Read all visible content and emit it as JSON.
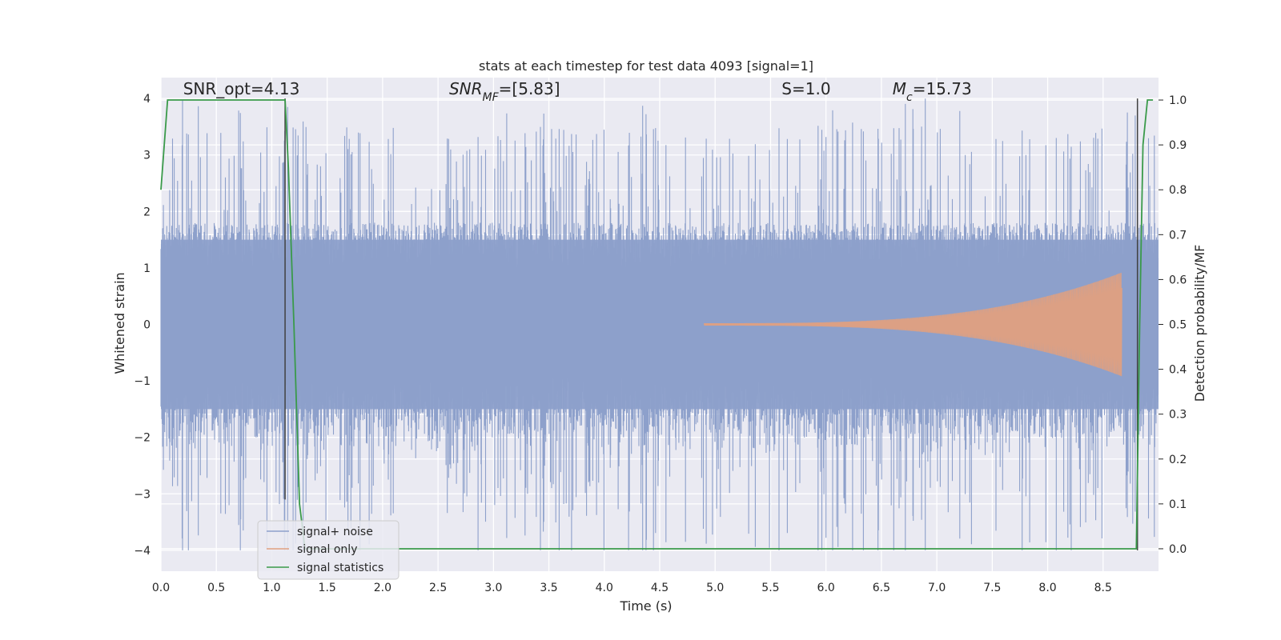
{
  "chart_data": {
    "type": "line",
    "title": "stats at each timestep for test data 4093 [signal=1]",
    "xlabel": "Time (s)",
    "ylabel": "Whitened strain",
    "y2label": "Detection probability/MF",
    "xlim": [
      0.0,
      9.0
    ],
    "ylim": [
      -4.37,
      4.37
    ],
    "y2lim": [
      -0.05,
      1.05
    ],
    "xticks": [
      "0.0",
      "0.5",
      "1.0",
      "1.5",
      "2.0",
      "2.5",
      "3.0",
      "3.5",
      "4.0",
      "4.5",
      "5.0",
      "5.5",
      "6.0",
      "6.5",
      "7.0",
      "7.5",
      "8.0",
      "8.5"
    ],
    "yticks": [
      "4",
      "3",
      "2",
      "1",
      "0",
      "−1",
      "−2",
      "−3",
      "−4"
    ],
    "y2ticks": [
      "1.0",
      "0.9",
      "0.8",
      "0.7",
      "0.6",
      "0.5",
      "0.4",
      "0.3",
      "0.2",
      "0.1",
      "0.0"
    ],
    "grid": true,
    "legend_position": "lower-left",
    "annotations": [
      {
        "text": "SNR_opt=4.13",
        "x": 0.2,
        "y": 4.1
      },
      {
        "text": "SNR_MF=[5.83]",
        "x": 2.6,
        "y": 4.1
      },
      {
        "text": "S=1.0",
        "x": 5.6,
        "y": 4.1
      },
      {
        "text": "M_c=15.73",
        "x": 6.6,
        "y": 4.1
      }
    ],
    "vlines": [
      {
        "x": 1.12,
        "ymin": -3.1,
        "ymax": 4.0
      },
      {
        "x": 8.81,
        "ymin": -4.0,
        "ymax": 4.0
      }
    ],
    "series": [
      {
        "name": "signal+ noise",
        "color": "#8da0cb",
        "description": "whitened strain noise, amplitude roughly ±1.5 with spikes up to ±4"
      },
      {
        "name": "signal only",
        "color": "#e0a080",
        "chirp_start": 4.9,
        "chirp_end": 8.67,
        "peak_amplitude": 0.9
      },
      {
        "name": "signal statistics",
        "color": "#3a9a4a",
        "axis": "right",
        "x": [
          0.0,
          0.06,
          0.1,
          0.15,
          0.5,
          1.0,
          1.12,
          1.15,
          1.2,
          1.25,
          1.3,
          8.5,
          8.8,
          8.83,
          8.86,
          8.9,
          8.95
        ],
        "y": [
          0.8,
          1.0,
          1.0,
          1.0,
          1.0,
          1.0,
          1.0,
          0.85,
          0.5,
          0.1,
          0.0,
          0.0,
          0.0,
          0.5,
          0.9,
          1.0,
          1.0
        ]
      }
    ]
  },
  "colors": {
    "plot_bg": "#eaeaf2",
    "grid": "#ffffff",
    "noise": "#8da0cb",
    "signal": "#e0a080",
    "stat": "#3a9a4a",
    "vline": "#404040"
  }
}
